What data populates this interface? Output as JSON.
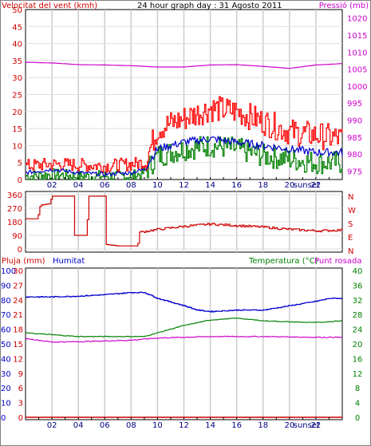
{
  "chart_data": [
    {
      "type": "line",
      "title": "24 hour graph day : 31 Agosto 2011",
      "left_axis_label": "Velocitat del vent (kmh)",
      "right_axis_label": "Pressió (mb)",
      "x_ticks": [
        "02",
        "04",
        "06",
        "08",
        "10",
        "12",
        "14",
        "16",
        "18",
        "20",
        "22",
        "sunset"
      ],
      "y_left_ticks": [
        "0",
        "5",
        "10",
        "15",
        "20",
        "25",
        "30",
        "35",
        "40",
        "45",
        "50"
      ],
      "y_left_range": [
        0,
        50
      ],
      "y_right_ticks": [
        "975",
        "980",
        "985",
        "990",
        "995",
        "1000",
        "1005",
        "1010",
        "1015",
        "1020"
      ],
      "y_right_range": [
        972.5,
        1022.5
      ],
      "colors": {
        "gust": "#ff0000",
        "avg": "#0000cc",
        "wind": "#008000",
        "pressure": "#cc00cc"
      },
      "pressure": {
        "x": [
          0,
          2,
          4,
          6,
          8,
          10,
          12,
          14,
          16,
          18,
          20,
          22,
          24
        ],
        "y": [
          1007,
          1006.8,
          1006.3,
          1006.2,
          1006,
          1005.6,
          1005.6,
          1006.2,
          1006.3,
          1005.8,
          1005.2,
          1006.2,
          1006.6
        ]
      },
      "gust_profile": {
        "x": [
          0,
          2,
          4,
          6,
          8,
          9,
          10,
          12,
          14,
          16,
          18,
          20,
          22,
          24
        ],
        "y": [
          4,
          4.5,
          4.3,
          4,
          4.5,
          5,
          15,
          18,
          21,
          20,
          17,
          14,
          13,
          12
        ]
      },
      "avg_profile": {
        "x": [
          0,
          2,
          4,
          6,
          8,
          9,
          10,
          12,
          14,
          16,
          18,
          20,
          22,
          24
        ],
        "y": [
          2,
          3,
          2,
          1.5,
          2,
          3,
          9,
          11,
          12,
          11,
          10,
          9,
          8,
          8
        ]
      },
      "wind_profile": {
        "x": [
          0,
          2,
          4,
          6,
          8,
          9,
          10,
          12,
          14,
          16,
          18,
          20,
          22,
          24
        ],
        "y": [
          1,
          1.5,
          1,
          1,
          1,
          2,
          7,
          9,
          10,
          9,
          7,
          6,
          5,
          5
        ]
      }
    },
    {
      "type": "line",
      "y_ticks": [
        "360",
        "270",
        "180",
        "90",
        "0"
      ],
      "y_range": [
        0,
        360
      ],
      "dir_labels": [
        "N",
        "W",
        "S",
        "E",
        "N"
      ],
      "color": "#cc0000",
      "direction": {
        "x": [
          0,
          0.9,
          1.1,
          1.8,
          2,
          3.6,
          3.7,
          4.6,
          4.8,
          6,
          6.1,
          7,
          8.5,
          8.6,
          10,
          12,
          14,
          16,
          18,
          20,
          22,
          24
        ],
        "y": [
          200,
          200,
          290,
          300,
          350,
          350,
          90,
          90,
          350,
          350,
          30,
          20,
          20,
          110,
          130,
          150,
          165,
          155,
          145,
          130,
          120,
          125
        ]
      }
    },
    {
      "type": "line",
      "left_axis_label_1": "Pluja (mm)",
      "left_axis_label_2": "Humitat",
      "right_axis_label_1": "Temperatura (°C)",
      "right_axis_label_2": "Punt rosada",
      "x_ticks": [
        "02",
        "04",
        "06",
        "08",
        "10",
        "12",
        "14",
        "16",
        "18",
        "20",
        "22",
        "sunset"
      ],
      "y_left_outer_ticks": [
        "100",
        "90",
        "80",
        "70",
        "60",
        "50",
        "40",
        "30",
        "20",
        "10",
        "0"
      ],
      "y_left_inner_ticks": [
        "30",
        "27",
        "24",
        "21",
        "18",
        "15",
        "12",
        "9",
        "6",
        "3",
        "0"
      ],
      "y_right_ticks": [
        "40",
        "36",
        "32",
        "28",
        "24",
        "20",
        "16",
        "12",
        "8",
        "4",
        "0"
      ],
      "humidity_range": [
        0,
        100
      ],
      "temperature_range": [
        0,
        40
      ],
      "colors": {
        "rain": "#cc0000",
        "humidity": "#0000cc",
        "temperature": "#008000",
        "dewpoint": "#cc00cc"
      },
      "humidity": {
        "x": [
          0,
          2,
          4,
          6,
          8,
          9,
          10,
          12,
          13,
          14,
          16,
          18,
          20,
          22,
          23,
          24
        ],
        "y": [
          82,
          82,
          82.5,
          83.5,
          85,
          85,
          81,
          76,
          73,
          72,
          73,
          73,
          76,
          79,
          81,
          81
        ]
      },
      "temperature": {
        "x": [
          0,
          2,
          4,
          6,
          8,
          9,
          10,
          12,
          14,
          16,
          18,
          20,
          22,
          24
        ],
        "y": [
          23,
          22.5,
          22,
          22,
          22,
          22,
          23,
          25,
          26.5,
          27,
          26.3,
          26,
          25.8,
          26.3
        ]
      },
      "dewpoint": {
        "x": [
          0,
          2,
          4,
          6,
          8,
          10,
          12,
          14,
          16,
          18,
          20,
          22,
          24
        ],
        "y": [
          21.5,
          20.5,
          20.6,
          20.8,
          21,
          21.6,
          21.8,
          22,
          22,
          22,
          21.9,
          21.8,
          21.8
        ]
      },
      "rain": {
        "x": [
          0,
          24
        ],
        "y": [
          0,
          0
        ]
      }
    }
  ]
}
